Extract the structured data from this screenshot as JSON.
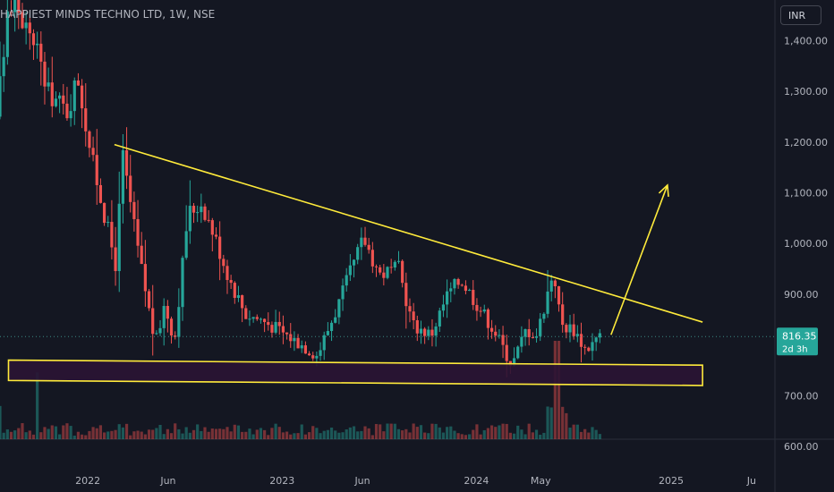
{
  "title": "HAPPIEST MINDS TECHNO LTD, 1W, NSE",
  "currency": "INR",
  "colors": {
    "up": "#26a69a",
    "down": "#ef5350",
    "trendline": "#ffeb3b",
    "zone_fill": "#2a1434",
    "background": "#141722"
  },
  "chart_data": {
    "type": "candlestick",
    "title": "HAPPIEST MINDS TECHNO LTD, 1W, NSE",
    "ylim": [
      510,
      1480
    ],
    "xlim": [
      "2021-07-20",
      "2025-07-15"
    ],
    "y_ticks": [
      {
        "value": 1300,
        "label": "1,300.00"
      },
      {
        "value": 1200,
        "label": "1,200.00"
      },
      {
        "value": 1100,
        "label": "1,100.00"
      },
      {
        "value": 1000,
        "label": "1,000.00"
      },
      {
        "value": 900,
        "label": "900.00"
      },
      {
        "value": 700,
        "label": "700.00"
      },
      {
        "value": 600,
        "label": "600.00"
      }
    ],
    "partial_top_tick": {
      "value": 1400,
      "label": "1,400.00"
    },
    "x_ticks": [
      {
        "date": "2022-01-01",
        "label": "2022"
      },
      {
        "date": "2022-06-01",
        "label": "Jun"
      },
      {
        "date": "2023-01-01",
        "label": "2023"
      },
      {
        "date": "2023-06-01",
        "label": "Jun"
      },
      {
        "date": "2024-01-01",
        "label": "2024"
      },
      {
        "date": "2024-05-01",
        "label": "May"
      },
      {
        "date": "2025-01-01",
        "label": "2025"
      },
      {
        "date": "2025-06-01",
        "label": "Ju"
      }
    ],
    "last_price": {
      "value": 816.35,
      "label": "816.35",
      "countdown": "2d 3h"
    },
    "price_path": [
      [
        "2021-07-20",
        1250
      ],
      [
        "2021-08-15",
        1480
      ],
      [
        "2021-10-01",
        1400
      ],
      [
        "2021-10-25",
        1300
      ],
      [
        "2021-12-01",
        1260
      ],
      [
        "2021-12-20",
        1330
      ],
      [
        "2022-01-15",
        1170
      ],
      [
        "2022-03-01",
        960
      ],
      [
        "2022-03-15",
        1170
      ],
      [
        "2022-04-10",
        1000
      ],
      [
        "2022-05-15",
        800
      ],
      [
        "2022-06-01",
        880
      ],
      [
        "2022-06-20",
        810
      ],
      [
        "2022-07-15",
        1060
      ],
      [
        "2022-08-10",
        1080
      ],
      [
        "2022-09-01",
        1020
      ],
      [
        "2022-10-01",
        930
      ],
      [
        "2022-11-01",
        860
      ],
      [
        "2022-12-01",
        850
      ],
      [
        "2023-01-01",
        830
      ],
      [
        "2023-02-15",
        800
      ],
      [
        "2023-03-15",
        780
      ],
      [
        "2023-04-20",
        870
      ],
      [
        "2023-06-10",
        1010
      ],
      [
        "2023-07-10",
        940
      ],
      [
        "2023-08-15",
        950
      ],
      [
        "2023-09-10",
        840
      ],
      [
        "2023-10-15",
        820
      ],
      [
        "2023-11-15",
        900
      ],
      [
        "2023-12-10",
        930
      ],
      [
        "2024-01-10",
        880
      ],
      [
        "2024-02-10",
        830
      ],
      [
        "2024-03-15",
        760
      ],
      [
        "2024-04-10",
        830
      ],
      [
        "2024-05-01",
        820
      ],
      [
        "2024-06-01",
        950
      ],
      [
        "2024-06-15",
        840
      ],
      [
        "2024-07-10",
        830
      ],
      [
        "2024-08-01",
        790
      ],
      [
        "2024-08-25",
        816
      ]
    ],
    "volume_spike": {
      "date": "2024-06-03",
      "value": 7.5
    },
    "annotations": {
      "descending_trendline": {
        "start": [
          "2022-02-20",
          1195
        ],
        "end": [
          "2025-03-01",
          845
        ]
      },
      "support_zone": {
        "top_left": [
          "2021-08-05",
          770
        ],
        "top_right": [
          "2025-03-01",
          760
        ],
        "bottom_right": [
          "2025-03-01",
          720
        ],
        "bottom_left": [
          "2021-08-05",
          730
        ]
      },
      "projection_arrow": {
        "start": [
          "2024-09-10",
          820
        ],
        "end": [
          "2024-12-25",
          1115
        ]
      }
    }
  }
}
